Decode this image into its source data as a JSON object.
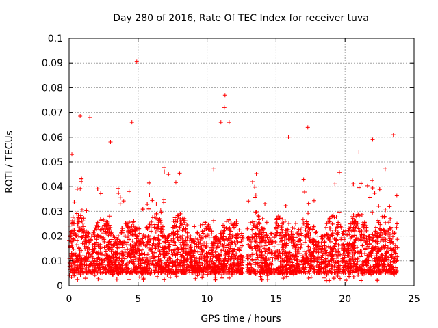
{
  "chart_data": {
    "type": "scatter",
    "title": "Day 280 of 2016, Rate Of TEC Index for receiver tuva",
    "xlabel": "GPS time / hours",
    "ylabel": "ROTI / TECUs",
    "xlim": [
      0,
      25
    ],
    "ylim": [
      0,
      0.1
    ],
    "xticks": [
      0,
      5,
      10,
      15,
      20,
      25
    ],
    "xtick_labels": [
      "0",
      "5",
      "10",
      "15",
      "20",
      "25"
    ],
    "yticks": [
      0,
      0.01,
      0.02,
      0.03,
      0.04,
      0.05,
      0.06,
      0.07,
      0.08,
      0.09,
      0.1
    ],
    "ytick_labels": [
      "0",
      "0.01",
      "0.02",
      "0.03",
      "0.04",
      "0.05",
      "0.06",
      "0.07",
      "0.08",
      "0.09",
      "0.1"
    ],
    "grid": true,
    "marker": "+",
    "series": [
      {
        "name": "ROTI",
        "color": "#ff0000",
        "x_range": [
          0,
          23.8
        ],
        "typical_range": [
          0.005,
          0.03
        ],
        "gap_hours": [
          12.6,
          12.9
        ],
        "outliers": [
          {
            "x": 0.8,
            "y": 0.0685
          },
          {
            "x": 1.5,
            "y": 0.068
          },
          {
            "x": 4.55,
            "y": 0.066
          },
          {
            "x": 4.9,
            "y": 0.0905
          },
          {
            "x": 11.3,
            "y": 0.077
          },
          {
            "x": 11.25,
            "y": 0.072
          },
          {
            "x": 11.0,
            "y": 0.066
          },
          {
            "x": 11.6,
            "y": 0.066
          },
          {
            "x": 17.3,
            "y": 0.064
          },
          {
            "x": 3.0,
            "y": 0.058
          },
          {
            "x": 6.9,
            "y": 0.046
          },
          {
            "x": 15.9,
            "y": 0.06
          },
          {
            "x": 23.5,
            "y": 0.061
          },
          {
            "x": 21.0,
            "y": 0.054
          },
          {
            "x": 22.0,
            "y": 0.059
          },
          {
            "x": 0.2,
            "y": 0.053
          }
        ]
      }
    ]
  }
}
